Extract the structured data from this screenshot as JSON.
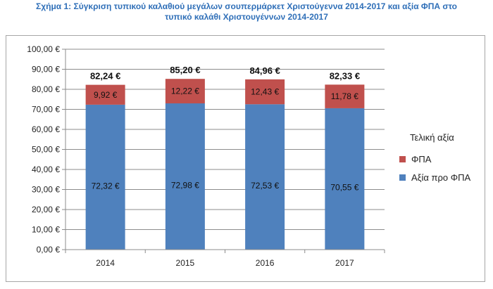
{
  "title": {
    "line1": "Σχήμα 1: Σύγκριση τυπικού καλαθιού μεγάλων σουπερμάρκετ Χριστούγεννα 2014-2017 και αξία ΦΠΑ στο",
    "line2": "τυπικό καλάθι Χριστουγέννων 2014-2017"
  },
  "legend": {
    "title": "Τελική αξία",
    "items": [
      {
        "name": "ΦΠΑ",
        "color": "#c0504d"
      },
      {
        "name": "Αξία προ ΦΠΑ",
        "color": "#4f81bd"
      }
    ]
  },
  "chart_data": {
    "type": "bar",
    "stacked": true,
    "categories": [
      "2014",
      "2015",
      "2016",
      "2017"
    ],
    "series": [
      {
        "name": "Αξία προ ΦΠΑ",
        "values": [
          72.32,
          72.98,
          72.53,
          70.55
        ],
        "labels": [
          "72,32 €",
          "72,98 €",
          "72,53 €",
          "70,55 €"
        ],
        "color": "#4f81bd"
      },
      {
        "name": "ΦΠΑ",
        "values": [
          9.92,
          12.22,
          12.43,
          11.78
        ],
        "labels": [
          "9,92 €",
          "12,22 €",
          "12,43 €",
          "11,78 €"
        ],
        "color": "#c0504d"
      }
    ],
    "totals": [
      82.24,
      85.2,
      84.96,
      82.33
    ],
    "total_labels": [
      "82,24 €",
      "85,20 €",
      "84,96 €",
      "82,33 €"
    ],
    "y_ticks": [
      "0,00 €",
      "10,00 €",
      "20,00 €",
      "30,00 €",
      "40,00 €",
      "50,00 €",
      "60,00 €",
      "70,00 €",
      "80,00 €",
      "90,00 €",
      "100,00 €"
    ],
    "ylim": [
      0,
      100
    ],
    "grid": true,
    "legend_position": "right"
  }
}
